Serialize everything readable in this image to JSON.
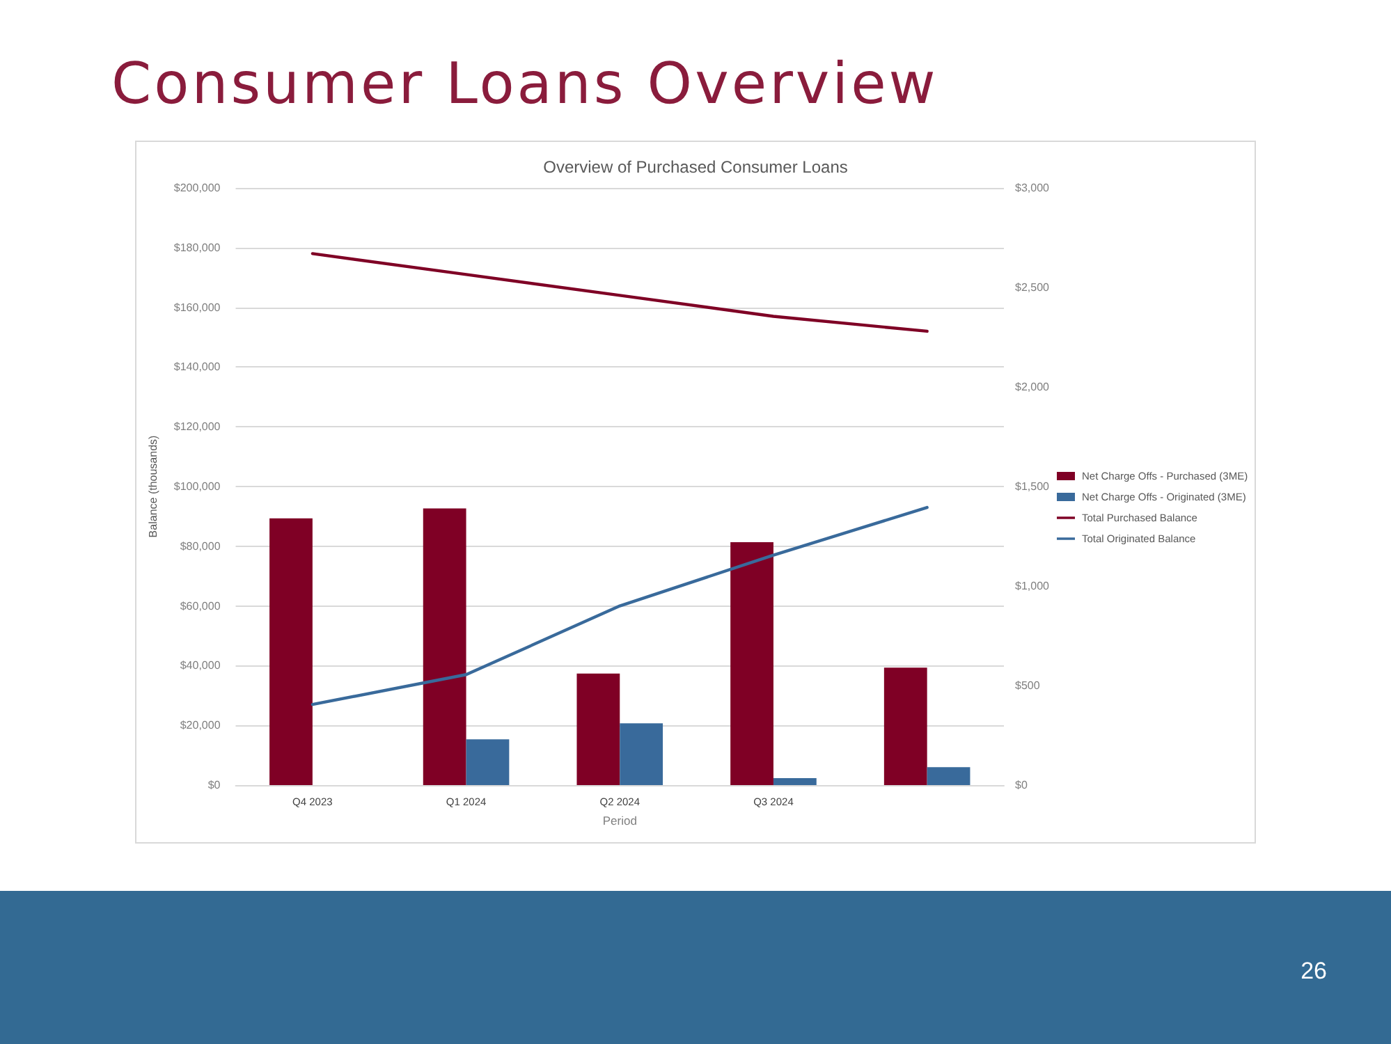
{
  "chart_data": {
    "type": "bar",
    "title": "Consumer Loans Overview",
    "subtitle": "Overview of Purchased Consumer Loans",
    "xlabel": "Period",
    "ylabel": "Balance (thousands)",
    "categories": [
      "Q4 2023",
      "Q1 2024",
      "Q2 2024",
      "Q3 2024",
      null
    ],
    "series": [
      {
        "name": "Net Charge Offs - Purchased (3ME)",
        "axis": "y2",
        "color": "#7f0025",
        "values": [
          1340,
          1390,
          560,
          1220,
          590
        ]
      },
      {
        "name": "Net Charge Offs - Originated (3ME)",
        "axis": "y2",
        "color": "#396a9b",
        "values": [
          null,
          230,
          310,
          35,
          90
        ]
      },
      {
        "name": "Total Purchased Balance",
        "type": "line",
        "color": "#7f0025",
        "values": [
          178000,
          171000,
          164000,
          157000,
          152000
        ]
      },
      {
        "name": "Total Originated Balance",
        "type": "line",
        "color": "#396a9b",
        "values": [
          27000,
          37000,
          60000,
          77000,
          93000
        ]
      }
    ],
    "ylim": [
      0,
      200000
    ],
    "yticks": [
      {
        "value": 0,
        "label": "$0"
      },
      {
        "value": 20000,
        "label": "$20,000"
      },
      {
        "value": 40000,
        "label": "$40,000"
      },
      {
        "value": 60000,
        "label": "$60,000"
      },
      {
        "value": 80000,
        "label": "$80,000"
      },
      {
        "value": 100000,
        "label": "$100,000"
      },
      {
        "value": 120000,
        "label": "$120,000"
      },
      {
        "value": 140000,
        "label": "$140,000"
      },
      {
        "value": 160000,
        "label": "$160,000"
      },
      {
        "value": 180000,
        "label": "$180,000"
      },
      {
        "value": 200000,
        "label": "$200,000"
      }
    ],
    "y2lim": [
      0,
      3000
    ],
    "y2ticks": [
      {
        "value": 0,
        "label": "$0"
      },
      {
        "value": 500,
        "label": "$500"
      },
      {
        "value": 1000,
        "label": "$1,000"
      },
      {
        "value": 1500,
        "label": "$1,500"
      },
      {
        "value": 2000,
        "label": "$2,000"
      },
      {
        "value": 2500,
        "label": "$2,500"
      },
      {
        "value": 3000,
        "label": "$3,000"
      }
    ],
    "grid": "y",
    "legend": "right",
    "marker": "none",
    "line_style": "solid",
    "annotations": [
      "26"
    ]
  }
}
